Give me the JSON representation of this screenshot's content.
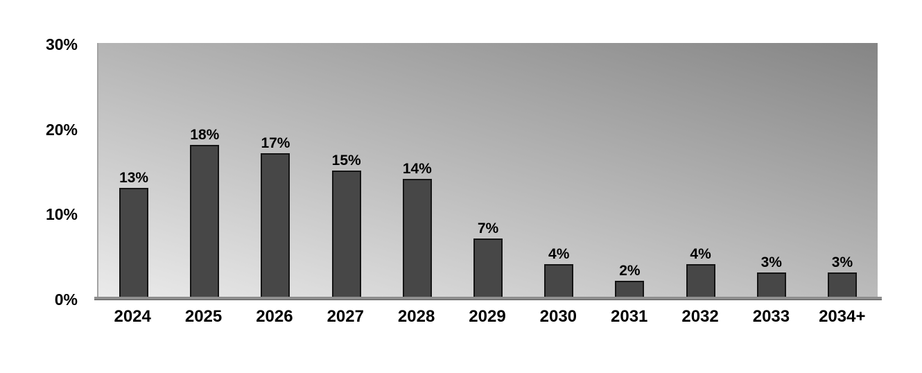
{
  "chart_data": {
    "type": "bar",
    "categories": [
      "2024",
      "2025",
      "2026",
      "2027",
      "2028",
      "2029",
      "2030",
      "2031",
      "2032",
      "2033",
      "2034+"
    ],
    "values": [
      13,
      18,
      17,
      15,
      14,
      7,
      4,
      2,
      4,
      3,
      3
    ],
    "value_labels": [
      "13%",
      "18%",
      "17%",
      "15%",
      "14%",
      "7%",
      "4%",
      "2%",
      "4%",
      "3%",
      "3%"
    ],
    "yticks": [
      {
        "value": 30,
        "label": "30%"
      },
      {
        "value": 20,
        "label": "20%"
      },
      {
        "value": 10,
        "label": "10%"
      },
      {
        "value": 0,
        "label": "0%"
      }
    ],
    "ylim": [
      0,
      30
    ],
    "xlabel": "",
    "ylabel": "",
    "grid": "off",
    "legend": "none",
    "colors": {
      "bar_fill": "#474747",
      "bar_border": "#141414",
      "plot_gradient_light": "#ebebeb",
      "plot_gradient_dark": "#858585",
      "axis_line": "#a3a3a3",
      "baseline": "#8e8e8e",
      "label_text": "#000000"
    }
  }
}
